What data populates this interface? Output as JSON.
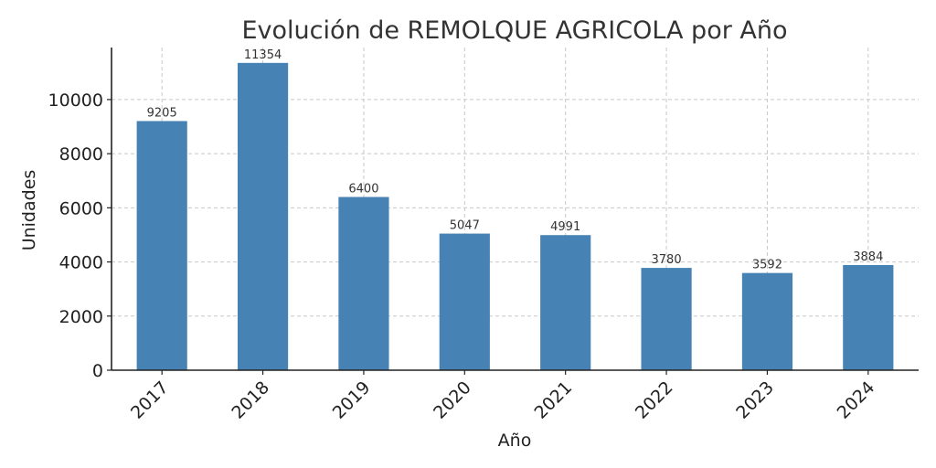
{
  "chart_data": {
    "type": "bar",
    "title": "Evolución de REMOLQUE AGRICOLA por Año",
    "xlabel": "Año",
    "ylabel": "Unidades",
    "categories": [
      "2017",
      "2018",
      "2019",
      "2020",
      "2021",
      "2022",
      "2023",
      "2024"
    ],
    "values": [
      9205,
      11354,
      6400,
      5047,
      4991,
      3780,
      3592,
      3884
    ],
    "data_labels": [
      "9205",
      "11354",
      "6400",
      "5047",
      "4991",
      "3780",
      "3592",
      "3884"
    ],
    "y_ticks": [
      0,
      2000,
      4000,
      6000,
      8000,
      10000
    ],
    "ylim": [
      0,
      11922
    ],
    "grid": true,
    "bar_color": "#4682B4",
    "x_tick_rotation_deg": -45
  }
}
